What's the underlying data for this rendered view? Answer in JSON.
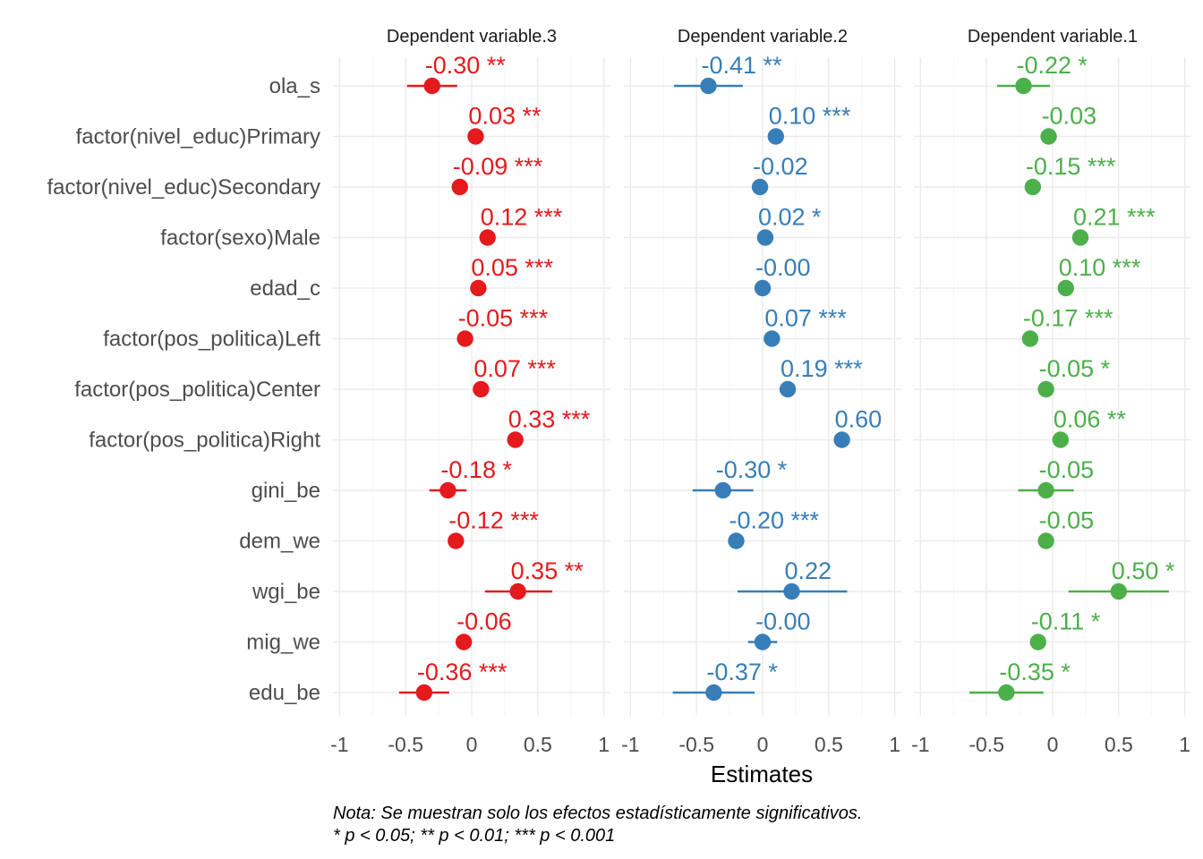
{
  "chart_data": {
    "type": "forest",
    "xlabel": "Estimates",
    "xlim": [
      -1.05,
      1.05
    ],
    "xticks": [
      -1,
      -0.5,
      0,
      0.5,
      1
    ],
    "xtick_labels": [
      "-1",
      "-0.5",
      "0",
      "0.5",
      "1"
    ],
    "grid": true,
    "terms": [
      "ola_s",
      "factor(nivel_educ)Primary",
      "factor(nivel_educ)Secondary",
      "factor(sexo)Male",
      "edad_c",
      "factor(pos_politica)Left",
      "factor(pos_politica)Center",
      "factor(pos_politica)Right",
      "gini_be",
      "dem_we",
      "wgi_be",
      "mig_we",
      "edu_be"
    ],
    "panels": [
      {
        "title": "Dependent variable.3",
        "color": "#e41a1c",
        "estimates": [
          -0.3,
          0.03,
          -0.09,
          0.12,
          0.05,
          -0.05,
          0.07,
          0.33,
          -0.18,
          -0.12,
          0.35,
          -0.06,
          -0.36
        ],
        "ci_low": [
          -0.49,
          0.03,
          -0.09,
          0.12,
          0.05,
          -0.05,
          0.07,
          0.33,
          -0.32,
          -0.12,
          0.1,
          -0.1,
          -0.55
        ],
        "ci_high": [
          -0.11,
          0.03,
          -0.09,
          0.12,
          0.05,
          -0.05,
          0.07,
          0.33,
          -0.04,
          -0.12,
          0.61,
          -0.02,
          -0.17
        ],
        "labels": [
          "-0.30 **",
          "0.03 **",
          "-0.09 ***",
          "0.12 ***",
          "0.05 ***",
          "-0.05 ***",
          "0.07 ***",
          "0.33 ***",
          "-0.18 *",
          "-0.12 ***",
          "0.35 **",
          "-0.06",
          "-0.36 ***"
        ]
      },
      {
        "title": "Dependent variable.2",
        "color": "#377eb8",
        "estimates": [
          -0.41,
          0.1,
          -0.02,
          0.02,
          -0.0,
          0.07,
          0.19,
          0.6,
          -0.3,
          -0.2,
          0.22,
          -0.0,
          -0.37
        ],
        "ci_low": [
          -0.67,
          0.1,
          -0.02,
          0.02,
          -0.0,
          0.07,
          0.19,
          0.6,
          -0.53,
          -0.26,
          -0.19,
          -0.11,
          -0.68
        ],
        "ci_high": [
          -0.15,
          0.1,
          -0.02,
          0.02,
          -0.0,
          0.07,
          0.19,
          0.6,
          -0.07,
          -0.14,
          0.64,
          0.11,
          -0.06
        ],
        "labels": [
          "-0.41 **",
          "0.10 ***",
          "-0.02",
          "0.02 *",
          "-0.00",
          "0.07 ***",
          "0.19 ***",
          "0.60",
          "-0.30 *",
          "-0.20 ***",
          "0.22",
          "-0.00",
          "-0.37 *"
        ]
      },
      {
        "title": "Dependent variable.1",
        "color": "#4daf4a",
        "estimates": [
          -0.22,
          -0.03,
          -0.15,
          0.21,
          0.1,
          -0.17,
          -0.05,
          0.06,
          -0.05,
          -0.05,
          0.5,
          -0.11,
          -0.35
        ],
        "ci_low": [
          -0.42,
          -0.03,
          -0.15,
          0.21,
          0.1,
          -0.17,
          -0.05,
          0.06,
          -0.26,
          -0.05,
          0.12,
          -0.14,
          -0.63
        ],
        "ci_high": [
          -0.02,
          -0.03,
          -0.15,
          0.21,
          0.1,
          -0.17,
          -0.05,
          0.06,
          0.16,
          -0.05,
          0.88,
          -0.08,
          -0.07
        ],
        "labels": [
          "-0.22 *",
          "-0.03",
          "-0.15 ***",
          "0.21 ***",
          "0.10 ***",
          "-0.17 ***",
          "-0.05 *",
          "0.06 **",
          "-0.05",
          "-0.05",
          "0.50 *",
          "-0.11 *",
          "-0.35 *"
        ]
      }
    ]
  },
  "note_line1": "Nota: Se muestran solo los efectos estadísticamente significativos.",
  "note_line2": "* p < 0.05; ** p < 0.01; *** p < 0.001"
}
